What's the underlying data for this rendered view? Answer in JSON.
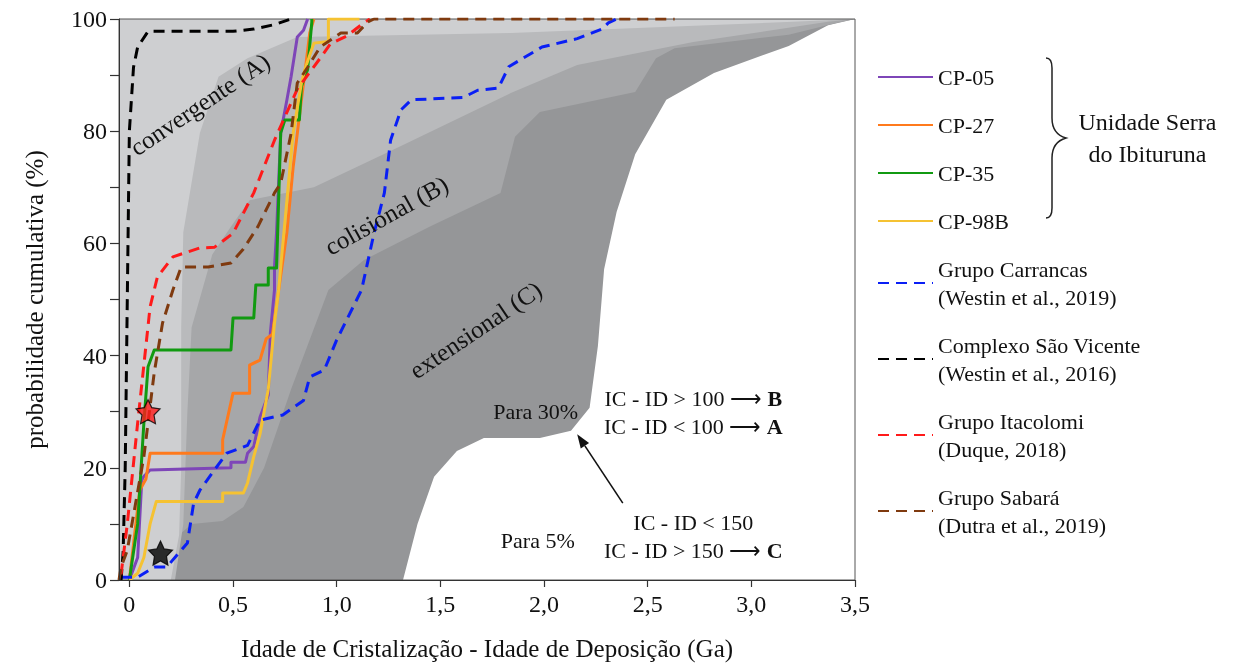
{
  "chart_data": {
    "type": "line",
    "xlabel": "Idade de Cristalização - Idade de Deposição (Ga)",
    "ylabel": "probabilidade cumulativa (%)",
    "legend_title": "Unidade Serra do Ibituruna",
    "xlim": [
      -0.05,
      3.5
    ],
    "xticks": [
      0,
      {
        "value": 0.5,
        "label": "0,5"
      },
      {
        "value": 1,
        "label": "1,0"
      },
      {
        "value": 1.5,
        "label": "1,5"
      },
      {
        "value": 2,
        "label": "2,0"
      },
      {
        "value": 2.5,
        "label": "2,5"
      },
      {
        "value": 3,
        "label": "3,0"
      },
      {
        "value": 3.5,
        "label": "3,5"
      }
    ],
    "ylim": [
      0,
      100
    ],
    "yticks": [
      0,
      {
        "value": 10,
        "label": null
      },
      20,
      {
        "value": 30,
        "label": null
      },
      40,
      {
        "value": 50,
        "label": null
      },
      60,
      {
        "value": 70,
        "label": null
      },
      80,
      {
        "value": 90,
        "label": null
      },
      100
    ],
    "grid": false,
    "legend": "right",
    "marker": "none",
    "annotations": [
      "convergente (A)",
      "colisional (B)",
      "extensional (C)",
      "Para 30%",
      "Para 5%",
      "IC - ID > 100 ⟶ B",
      "IC - ID < 100 ⟶ A",
      "IC - ID < 150",
      "IC - ID > 150 ⟶ C"
    ],
    "series": [
      {
        "name": "CP-05",
        "color": "#7e46b8",
        "x": [
          0,
          0.04,
          0.06,
          0.07,
          0.1,
          0.49,
          0.49,
          0.56,
          0.57,
          0.6,
          0.63,
          0.67,
          0.68,
          0.7,
          0.7,
          0.71,
          0.73,
          0.76,
          0.78,
          0.81,
          0.84,
          0.86
        ],
        "values": [
          0,
          4,
          17.8,
          18.5,
          19.6,
          20,
          21,
          21,
          22.6,
          23.8,
          29,
          33,
          44,
          51.7,
          55.8,
          62,
          79.7,
          85.6,
          89.7,
          96.8,
          98,
          100
        ]
      },
      {
        "name": "CP-27",
        "color": "#ff7a1c",
        "x": [
          0,
          0.05,
          0.08,
          0.1,
          0.45,
          0.45,
          0.5,
          0.58,
          0.58,
          0.63,
          0.66,
          0.69,
          0.72,
          0.76,
          0.79,
          0.83,
          0.85,
          0.87,
          0.89
        ],
        "values": [
          0,
          16,
          18,
          22.6,
          22.6,
          25,
          33.3,
          33.3,
          38.3,
          39.2,
          43,
          43.8,
          51.7,
          62,
          73.6,
          85.6,
          91.4,
          97.5,
          100
        ]
      },
      {
        "name": "CP-35",
        "color": "#119a11",
        "x": [
          0,
          0.04,
          0.07,
          0.09,
          0.12,
          0.49,
          0.5,
          0.6,
          0.61,
          0.67,
          0.67,
          0.71,
          0.73,
          0.75,
          0.82,
          0.83,
          0.86,
          0.88,
          0.88
        ],
        "values": [
          0,
          10,
          28,
          38,
          41,
          41,
          46.7,
          46.7,
          52.6,
          52.6,
          55.6,
          55.6,
          79.7,
          82,
          82,
          88,
          91,
          99.5,
          100
        ]
      },
      {
        "name": "CP-98B",
        "color": "#f5c232",
        "x": [
          0,
          0.04,
          0.07,
          0.1,
          0.13,
          0.45,
          0.45,
          0.55,
          0.57,
          0.6,
          0.63,
          0.67,
          0.7,
          0.72,
          0.73,
          0.76,
          0.79,
          0.83,
          0.85,
          0.89,
          0.96,
          0.96,
          1.11
        ],
        "values": [
          0,
          1.2,
          4,
          10,
          14,
          14,
          15.5,
          15.5,
          17.3,
          22,
          26,
          34,
          45.8,
          51.7,
          55.8,
          67.7,
          79.7,
          88.6,
          91.4,
          95.7,
          96,
          100,
          100
        ]
      },
      {
        "name": "Grupo Carrancas (Westin et al., 2019)",
        "color": "#0a1ff5",
        "line_style": "dashed",
        "x": [
          -0.04,
          0.04,
          0.12,
          0.18,
          0.28,
          0.31,
          0.34,
          0.41,
          0.47,
          0.57,
          0.63,
          0.74,
          0.84,
          0.87,
          0.94,
          1.0,
          1.12,
          1.18,
          1.23,
          1.26,
          1.31,
          1.36,
          1.61,
          1.68,
          1.78,
          1.83,
          1.99,
          2.16,
          2.28,
          2.31,
          2.35
        ],
        "values": [
          0.5,
          0.5,
          2.3,
          2.3,
          6.6,
          13.7,
          16,
          19.6,
          22.6,
          24,
          28.5,
          29.4,
          32,
          36.2,
          37.4,
          42.8,
          51.7,
          61.8,
          69,
          78.4,
          83.8,
          85.6,
          86,
          87.3,
          87.7,
          91.5,
          95,
          96.5,
          98.2,
          99.3,
          100
        ]
      },
      {
        "name": "Complexo São Vicente (Westin et al., 2016)",
        "color": "#000000",
        "line_style": "dashed",
        "x": [
          -0.04,
          -0.03,
          -0.02,
          -0.01,
          0,
          0.02,
          0.04,
          0.09,
          0.5,
          0.6,
          0.7,
          0.78
        ],
        "values": [
          0,
          5,
          20,
          50,
          80,
          91.4,
          95,
          97.8,
          97.8,
          98.2,
          99,
          100
        ]
      },
      {
        "name": "Grupo Itacolomi (Duque, 2018)",
        "color": "#ff1a1a",
        "line_style": "dashed",
        "x": [
          -0.04,
          -0.01,
          0.04,
          0.1,
          0.135,
          0.21,
          0.34,
          0.41,
          0.5,
          0.6,
          0.7,
          0.81,
          0.92,
          0.97,
          1.05,
          1.13,
          1.16
        ],
        "values": [
          1,
          10,
          28,
          48.7,
          54,
          57.6,
          59.2,
          59.3,
          61.8,
          69,
          78.4,
          87.5,
          93,
          95.6,
          97,
          99.3,
          100
        ]
      },
      {
        "name": "Grupo Sabará (Dutra et al., 2019)",
        "color": "#7f3a0f",
        "line_style": "dashed",
        "x": [
          -0.05,
          -0.04,
          -0.01,
          0.07,
          0.12,
          0.16,
          0.21,
          0.25,
          0.38,
          0.49,
          0.55,
          0.62,
          0.7,
          0.73,
          0.78,
          0.81,
          0.86,
          0.92,
          1.02,
          1.1,
          1.15,
          1.18,
          2.63
        ],
        "values": [
          0,
          2.3,
          5.3,
          22,
          37,
          45.8,
          51.7,
          55.8,
          55.8,
          56.5,
          59,
          63,
          69,
          70.7,
          79.6,
          88.6,
          91.4,
          95,
          97.5,
          97.5,
          99.5,
          100,
          100
        ]
      },
      {
        "type": "scatter",
        "marker": "star",
        "color": "#ff1a1a",
        "x": [
          0.09
        ],
        "values": [
          30
        ]
      },
      {
        "type": "scatter",
        "marker": "star",
        "color": "#000000",
        "x": [
          0.15
        ],
        "values": [
          4.8
        ]
      }
    ]
  }
}
